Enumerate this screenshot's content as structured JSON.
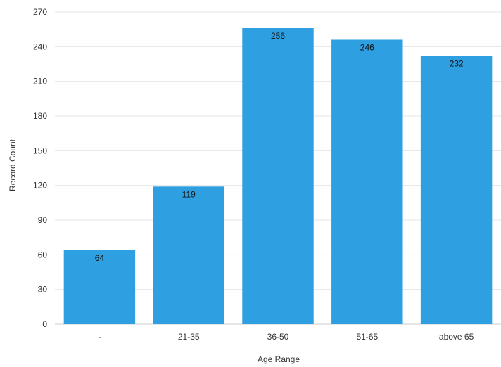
{
  "chart_data": {
    "type": "bar",
    "categories": [
      "-",
      "21-35",
      "36-50",
      "51-65",
      "above 65"
    ],
    "values": [
      64,
      119,
      256,
      246,
      232
    ],
    "xlabel": "Age Range",
    "ylabel": "Record Count",
    "ylim": [
      0,
      270
    ],
    "yticks": [
      0,
      30,
      60,
      90,
      120,
      150,
      180,
      210,
      240,
      270
    ],
    "grid": true,
    "bar_color": "#2e9fe0",
    "data_labels": true
  }
}
